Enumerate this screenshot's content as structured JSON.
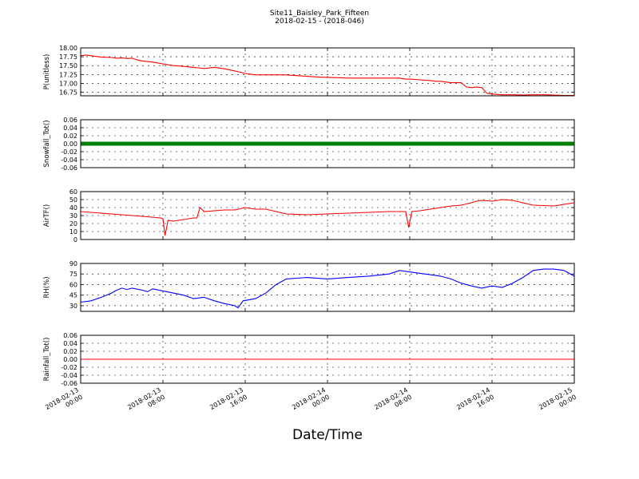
{
  "chart_data": {
    "type": "line",
    "title": "Site11_Baisley_Park_Fifteen",
    "subtitle": "2018-02-15 - (2018-046)",
    "xlabel": "Date/Time",
    "grid": true,
    "x_ticks": [
      {
        "line1": "2018-02-13",
        "line2": "00:00"
      },
      {
        "line1": "2018-02-13",
        "line2": "08:00"
      },
      {
        "line1": "2018-02-13",
        "line2": "16:00"
      },
      {
        "line1": "2018-02-14",
        "line2": "00:00"
      },
      {
        "line1": "2018-02-14",
        "line2": "08:00"
      },
      {
        "line1": "2018-02-14",
        "line2": "16:00"
      },
      {
        "line1": "2018-02-15",
        "line2": "00:00"
      }
    ],
    "xrange_hours": [
      0,
      48
    ],
    "panels": [
      {
        "ylabel": "P(unitless)",
        "ylim": [
          16.65,
          18.0
        ],
        "ytick_labels": [
          "16.75",
          "17.00",
          "17.25",
          "17.50",
          "17.75",
          "18.00"
        ],
        "ytick_values": [
          16.75,
          17.0,
          17.25,
          17.5,
          17.75,
          18.0
        ],
        "color": "#ff0000",
        "marker": false,
        "series": [
          {
            "x": [
              0,
              0.5,
              1,
              1.5,
              2,
              3,
              3.5,
              4,
              4.5,
              5,
              5.5,
              6,
              7,
              8,
              9,
              10,
              11,
              12,
              13,
              14,
              15,
              16,
              17,
              18,
              19,
              20,
              21,
              22,
              23,
              24,
              25,
              26,
              27,
              28,
              29,
              30,
              31,
              31.5,
              32,
              33,
              34,
              34.5,
              35,
              35.5,
              36,
              37,
              37.5,
              38,
              38.5,
              39,
              39.5,
              40,
              41,
              42,
              43,
              44,
              45,
              46,
              47,
              48
            ],
            "y": [
              17.78,
              17.8,
              17.78,
              17.76,
              17.74,
              17.73,
              17.71,
              17.72,
              17.7,
              17.71,
              17.66,
              17.63,
              17.6,
              17.55,
              17.5,
              17.48,
              17.45,
              17.42,
              17.45,
              17.41,
              17.35,
              17.28,
              17.24,
              17.24,
              17.24,
              17.24,
              17.22,
              17.2,
              17.18,
              17.17,
              17.16,
              17.15,
              17.15,
              17.15,
              17.15,
              17.15,
              17.15,
              17.12,
              17.12,
              17.1,
              17.08,
              17.06,
              17.06,
              17.04,
              17.02,
              17.02,
              16.9,
              16.88,
              16.9,
              16.88,
              16.72,
              16.7,
              16.68,
              16.68,
              16.67,
              16.68,
              16.68,
              16.67,
              16.66,
              16.66
            ]
          }
        ]
      },
      {
        "ylabel": "Snowfall_Tot()",
        "ylim": [
          -0.06,
          0.06
        ],
        "ytick_labels": [
          "-0.06",
          "-0.04",
          "-0.02",
          "0.00",
          "0.02",
          "0.04",
          "0.06"
        ],
        "ytick_values": [
          -0.06,
          -0.04,
          -0.02,
          0.0,
          0.02,
          0.04,
          0.06
        ],
        "color": "#008000",
        "marker": true,
        "series": [
          {
            "x": [
              0,
              48
            ],
            "y": [
              0.0,
              0.0
            ]
          }
        ]
      },
      {
        "ylabel": "AirTF()",
        "ylim": [
          0,
          60
        ],
        "ytick_labels": [
          "0",
          "10",
          "20",
          "30",
          "40",
          "50",
          "60"
        ],
        "ytick_values": [
          0,
          10,
          20,
          30,
          40,
          50,
          60
        ],
        "color": "#ff0000",
        "marker": false,
        "series": [
          {
            "x": [
              0,
              2,
              4,
              6,
              7.8,
              8.0,
              8.2,
              8.5,
              9,
              10,
              11,
              11.3,
              11.6,
              12,
              14,
              15,
              16,
              17,
              18,
              20,
              22,
              24,
              26,
              28,
              30,
              31.6,
              31.9,
              32.2,
              33,
              34,
              35,
              36,
              37,
              38,
              38.5,
              39,
              40,
              41,
              42,
              43,
              44,
              46,
              48
            ],
            "y": [
              35,
              33,
              31,
              29,
              27,
              26,
              5,
              24,
              23,
              25,
              27,
              27,
              40,
              35,
              37,
              37,
              40,
              38,
              38,
              32,
              31,
              32,
              33,
              34,
              35,
              35,
              15,
              35,
              36,
              38,
              40,
              42,
              43,
              46,
              48,
              49,
              48,
              50,
              49,
              46,
              43,
              42,
              46
            ]
          }
        ]
      },
      {
        "ylabel": "RH(%)",
        "ylim": [
          22,
          90
        ],
        "ytick_labels": [
          "30",
          "45",
          "60",
          "75",
          "90"
        ],
        "ytick_values": [
          30,
          45,
          60,
          75,
          90
        ],
        "color": "#0000ff",
        "marker": false,
        "series": [
          {
            "x": [
              0,
              1,
              2,
              3,
              3.5,
              4,
              4.5,
              5,
              6,
              6.5,
              7,
              8,
              9,
              10,
              11,
              12,
              13,
              14,
              15,
              15.3,
              15.8,
              17,
              18,
              19,
              20,
              22,
              24,
              26,
              28,
              30,
              31,
              32,
              33,
              34,
              35,
              36,
              37,
              38,
              39,
              40,
              41,
              42,
              43,
              44,
              45,
              46,
              47,
              48
            ],
            "y": [
              35,
              37,
              42,
              48,
              52,
              55,
              53,
              55,
              52,
              50,
              54,
              51,
              48,
              45,
              40,
              42,
              37,
              33,
              30,
              27,
              37,
              40,
              48,
              60,
              68,
              70,
              68,
              70,
              72,
              75,
              80,
              78,
              76,
              74,
              72,
              68,
              62,
              58,
              55,
              58,
              56,
              62,
              70,
              80,
              82,
              82,
              80,
              72
            ]
          }
        ]
      },
      {
        "ylabel": "Rainfall_Tot()",
        "ylim": [
          -0.06,
          0.06
        ],
        "ytick_labels": [
          "-0.06",
          "-0.04",
          "-0.02",
          "0.00",
          "0.02",
          "0.04",
          "0.06"
        ],
        "ytick_values": [
          -0.06,
          -0.04,
          -0.02,
          0.0,
          0.02,
          0.04,
          0.06
        ],
        "color": "#ff0000",
        "marker": false,
        "series": [
          {
            "x": [
              0,
              48
            ],
            "y": [
              0.0,
              0.0
            ]
          }
        ]
      }
    ]
  }
}
